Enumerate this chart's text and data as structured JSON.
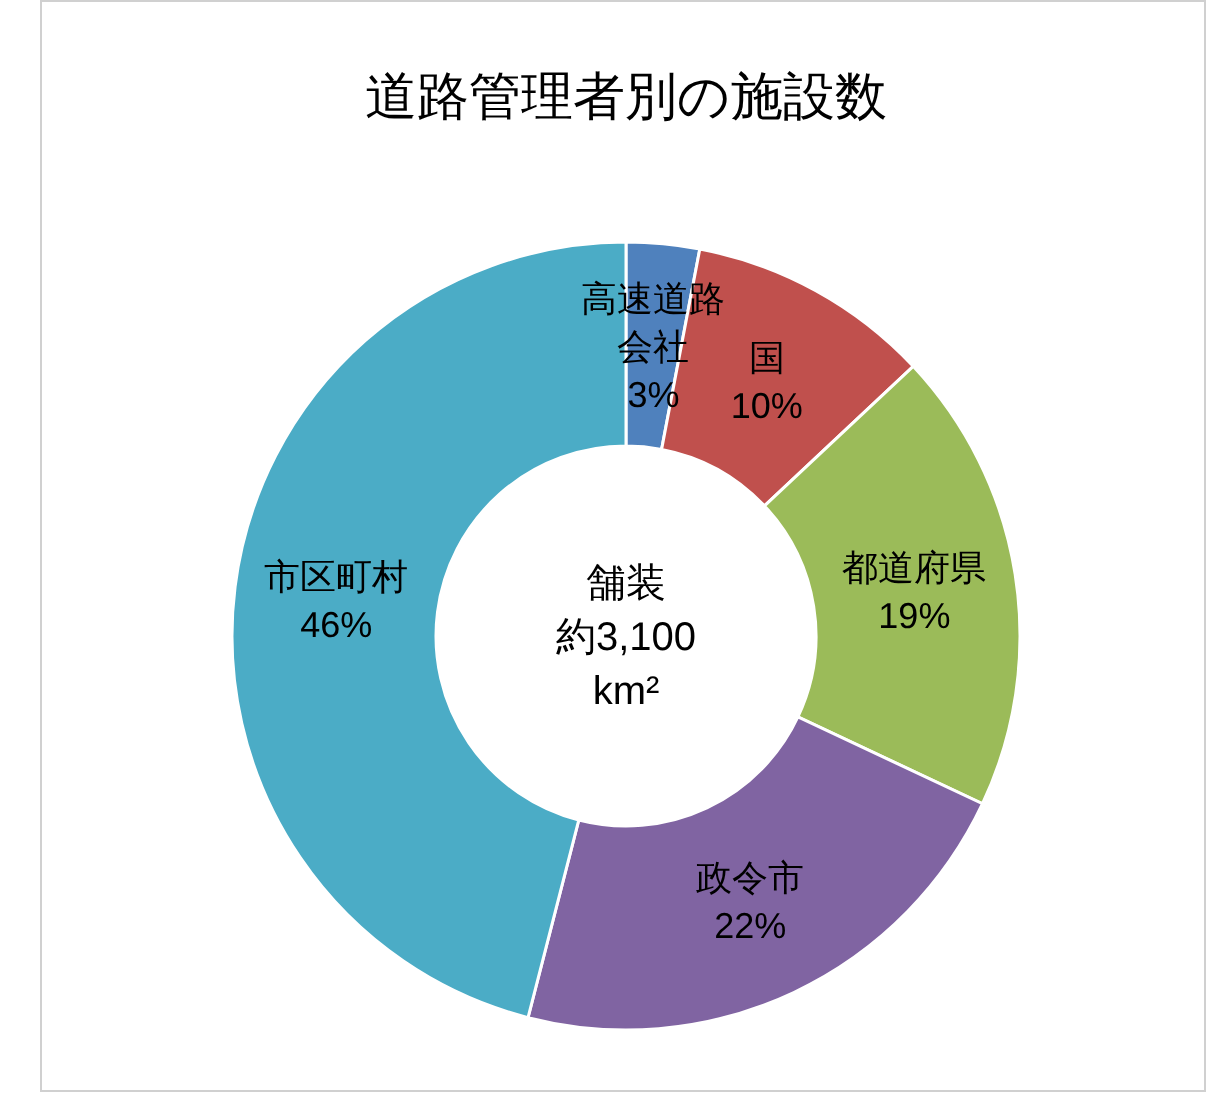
{
  "chart_data": {
    "type": "donut",
    "title": "道路管理者別の施設数",
    "categories": [
      "高速道路会社",
      "国",
      "都道府県",
      "政令市",
      "市区町村"
    ],
    "values": [
      3,
      10,
      19,
      22,
      46
    ],
    "colors": [
      "#4f81bd",
      "#c0504d",
      "#9bbb59",
      "#8064a2",
      "#4bacc6"
    ],
    "value_labels": [
      "3%",
      "10%",
      "19%",
      "22%",
      "46%"
    ],
    "annotations": [
      "舗装",
      "約3,100",
      "km²"
    ]
  }
}
